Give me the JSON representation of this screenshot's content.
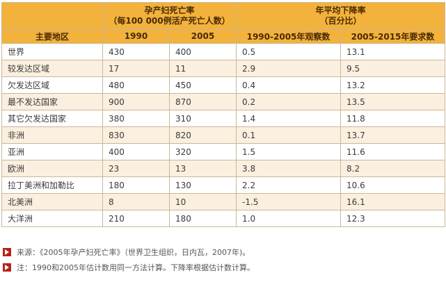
{
  "header": {
    "group1_line1": "孕产妇死亡率",
    "group1_line2": "（每100 000例活产死亡人数）",
    "group2_line1": "年平均下降率",
    "group2_line2": "（百分比）",
    "col_region": "主要地区",
    "col_1990": "1990",
    "col_2005": "2005",
    "col_observed": "1990-2005年观察数",
    "col_required": "2005-2015年要求数"
  },
  "rows": [
    {
      "region": "世界",
      "v1990": "430",
      "v2005": "400",
      "observed": "0.5",
      "required": "13.1"
    },
    {
      "region": "较发达区域",
      "v1990": "17",
      "v2005": "11",
      "observed": "2.9",
      "required": "9.5"
    },
    {
      "region": "欠发达区域",
      "v1990": "480",
      "v2005": "450",
      "observed": "0.4",
      "required": "13.2"
    },
    {
      "region": "最不发达国家",
      "v1990": "900",
      "v2005": "870",
      "observed": "0.2",
      "required": "13.5"
    },
    {
      "region": "其它欠发达国家",
      "v1990": "380",
      "v2005": "310",
      "observed": "1.4",
      "required": "11.8"
    },
    {
      "region": "非洲",
      "v1990": "830",
      "v2005": "820",
      "observed": "0.1",
      "required": "13.7"
    },
    {
      "region": "亚洲",
      "v1990": "400",
      "v2005": "320",
      "observed": "1.5",
      "required": "11.6"
    },
    {
      "region": "欧洲",
      "v1990": "23",
      "v2005": "13",
      "observed": "3.8",
      "required": "8.2"
    },
    {
      "region": "拉丁美洲和加勒比",
      "v1990": "180",
      "v2005": "130",
      "observed": "2.2",
      "required": "10.6"
    },
    {
      "region": "北美洲",
      "v1990": "8",
      "v2005": "10",
      "observed": "-1.5",
      "required": "16.1"
    },
    {
      "region": "大洋洲",
      "v1990": "210",
      "v2005": "180",
      "observed": "1.0",
      "required": "12.3"
    }
  ],
  "notes": {
    "source": "来源：《2005年孕产妇死亡率》（世界卫生组织，日内瓦，2007年)。",
    "note": "注：1990和2005年估计数用同一方法计算。下降率根据估计数计算。"
  },
  "colors": {
    "header_bg": "#f2b23b",
    "stripe": "#fbf0df",
    "arrow": "#b8201a"
  }
}
